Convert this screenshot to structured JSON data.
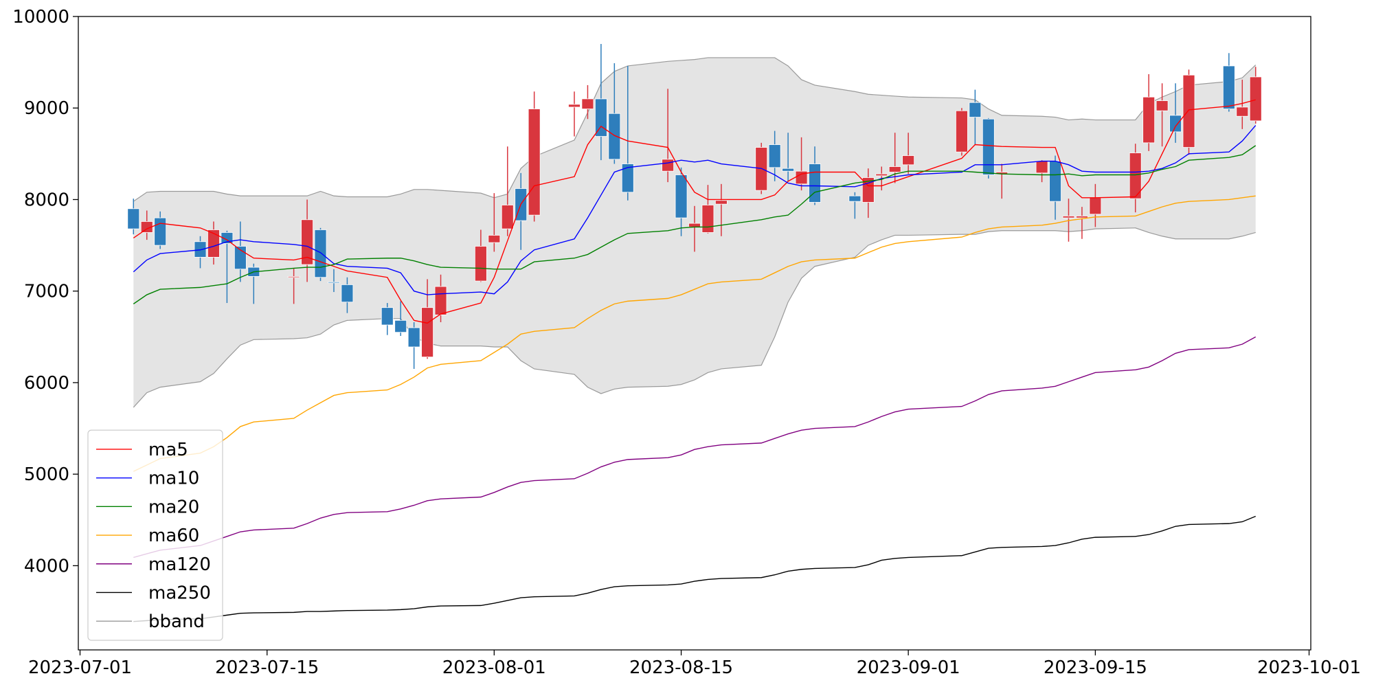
{
  "chart_data": {
    "type": "candlestick",
    "x": [
      "2023-07-05",
      "2023-07-06",
      "2023-07-07",
      "2023-07-10",
      "2023-07-11",
      "2023-07-12",
      "2023-07-13",
      "2023-07-14",
      "2023-07-17",
      "2023-07-18",
      "2023-07-19",
      "2023-07-20",
      "2023-07-21",
      "2023-07-24",
      "2023-07-25",
      "2023-07-26",
      "2023-07-27",
      "2023-07-28",
      "2023-07-31",
      "2023-08-01",
      "2023-08-02",
      "2023-08-03",
      "2023-08-04",
      "2023-08-07",
      "2023-08-08",
      "2023-08-09",
      "2023-08-10",
      "2023-08-11",
      "2023-08-14",
      "2023-08-15",
      "2023-08-16",
      "2023-08-17",
      "2023-08-18",
      "2023-08-21",
      "2023-08-22",
      "2023-08-23",
      "2023-08-24",
      "2023-08-25",
      "2023-08-28",
      "2023-08-29",
      "2023-08-30",
      "2023-08-31",
      "2023-09-01",
      "2023-09-05",
      "2023-09-06",
      "2023-09-07",
      "2023-09-08",
      "2023-09-11",
      "2023-09-12",
      "2023-09-13",
      "2023-09-14",
      "2023-09-15",
      "2023-09-18",
      "2023-09-19",
      "2023-09-20",
      "2023-09-21",
      "2023-09-22",
      "2023-09-25",
      "2023-09-26",
      "2023-09-27"
    ],
    "open": [
      7900,
      7640,
      7800,
      7540,
      7370,
      7640,
      7490,
      7260,
      7150,
      7290,
      7670,
      7100,
      7070,
      6820,
      6680,
      6600,
      6280,
      6740,
      7110,
      7530,
      7680,
      8120,
      7830,
      9010,
      8990,
      9100,
      8940,
      8390,
      8310,
      8270,
      7700,
      7640,
      7950,
      8100,
      8600,
      8340,
      8170,
      8390,
      8040,
      7970,
      8260,
      8300,
      8380,
      8520,
      9060,
      8880,
      8280,
      8290,
      8420,
      7800,
      7800,
      7840,
      8010,
      8620,
      8970,
      8920,
      8570,
      9460,
      8910,
      8860
    ],
    "high": [
      8010,
      7880,
      7870,
      7600,
      7760,
      7660,
      7760,
      7300,
      7250,
      8000,
      7690,
      7240,
      7150,
      6870,
      6890,
      6660,
      7130,
      7180,
      7670,
      8070,
      8580,
      8290,
      9180,
      9180,
      9250,
      9700,
      9490,
      9460,
      9210,
      8350,
      7930,
      8160,
      8170,
      8620,
      8750,
      8730,
      8680,
      8580,
      8080,
      8340,
      8360,
      8730,
      8730,
      9000,
      9200,
      8890,
      8390,
      8430,
      8480,
      8010,
      7920,
      8170,
      8610,
      9370,
      9270,
      9270,
      9420,
      9600,
      9310,
      9450
    ],
    "low": [
      7620,
      7560,
      7460,
      7250,
      7290,
      6870,
      7100,
      6860,
      6860,
      7100,
      7110,
      6990,
      6760,
      6520,
      6510,
      6150,
      6260,
      6660,
      7100,
      7430,
      7600,
      7450,
      7760,
      8690,
      8880,
      8430,
      8390,
      7990,
      8190,
      7600,
      7430,
      7630,
      7600,
      8060,
      8200,
      8200,
      8100,
      7940,
      7790,
      7800,
      8100,
      8180,
      8280,
      8480,
      8600,
      8230,
      8010,
      8190,
      7780,
      7540,
      7570,
      7700,
      7860,
      8530,
      8580,
      8620,
      8490,
      8960,
      8770,
      8830
    ],
    "close": [
      7680,
      7760,
      7500,
      7370,
      7670,
      7520,
      7240,
      7160,
      7160,
      7780,
      7150,
      7090,
      6880,
      6630,
      6550,
      6390,
      6820,
      7050,
      7490,
      7610,
      7940,
      7770,
      8990,
      9040,
      9100,
      8690,
      8440,
      8080,
      8440,
      7800,
      7740,
      7940,
      7990,
      8570,
      8350,
      8310,
      8310,
      7970,
      7980,
      8240,
      8280,
      8360,
      8480,
      8970,
      8900,
      8270,
      8300,
      8420,
      7980,
      7820,
      7820,
      8020,
      8510,
      9120,
      9080,
      8740,
      9360,
      8990,
      9010,
      9340
    ],
    "up_color": "#d9363e",
    "down_color": "#2e7ebc",
    "series": [
      {
        "name": "ma5",
        "color": "#ff0000",
        "values": [
          7580,
          7680,
          7740,
          7690,
          7630,
          7560,
          7450,
          7360,
          7340,
          7370,
          7320,
          7270,
          7220,
          7150,
          6900,
          6680,
          6650,
          6750,
          6870,
          7150,
          7550,
          7950,
          8150,
          8250,
          8600,
          8800,
          8700,
          8640,
          8570,
          8300,
          8080,
          8000,
          8000,
          8000,
          8050,
          8200,
          8280,
          8300,
          8300,
          8150,
          8150,
          8200,
          8250,
          8450,
          8600,
          8590,
          8580,
          8570,
          8570,
          8150,
          8020,
          8020,
          8030,
          8200,
          8500,
          8800,
          8980,
          9020,
          9050,
          9090
        ]
      },
      {
        "name": "ma10",
        "color": "#0000ff",
        "values": [
          7210,
          7340,
          7410,
          7450,
          7490,
          7540,
          7560,
          7540,
          7510,
          7490,
          7420,
          7300,
          7270,
          7250,
          7200,
          7000,
          6960,
          6970,
          6990,
          6970,
          7100,
          7330,
          7450,
          7570,
          7800,
          8050,
          8300,
          8350,
          8400,
          8430,
          8410,
          8430,
          8390,
          8340,
          8270,
          8180,
          8150,
          8150,
          8140,
          8180,
          8230,
          8250,
          8270,
          8300,
          8380,
          8380,
          8380,
          8420,
          8420,
          8380,
          8310,
          8300,
          8300,
          8310,
          8340,
          8400,
          8500,
          8520,
          8640,
          8810
        ]
      },
      {
        "name": "ma20",
        "color": "#008000",
        "values": [
          6860,
          6960,
          7020,
          7040,
          7060,
          7080,
          7150,
          7210,
          7250,
          7260,
          7260,
          7290,
          7350,
          7360,
          7360,
          7330,
          7290,
          7260,
          7250,
          7240,
          7240,
          7240,
          7320,
          7360,
          7400,
          7480,
          7560,
          7630,
          7660,
          7690,
          7700,
          7700,
          7720,
          7780,
          7810,
          7830,
          7950,
          8080,
          8180,
          8200,
          8220,
          8280,
          8310,
          8310,
          8300,
          8290,
          8280,
          8270,
          8270,
          8280,
          8260,
          8270,
          8270,
          8290,
          8330,
          8360,
          8430,
          8460,
          8490,
          8590
        ]
      },
      {
        "name": "ma60",
        "color": "#ffa500",
        "values": [
          5030,
          5100,
          5170,
          5230,
          5300,
          5400,
          5520,
          5570,
          5610,
          5700,
          5780,
          5860,
          5890,
          5920,
          5980,
          6060,
          6160,
          6200,
          6240,
          6330,
          6420,
          6530,
          6560,
          6600,
          6700,
          6790,
          6860,
          6890,
          6920,
          6960,
          7020,
          7080,
          7100,
          7130,
          7200,
          7270,
          7320,
          7340,
          7360,
          7420,
          7480,
          7520,
          7540,
          7590,
          7640,
          7680,
          7700,
          7720,
          7740,
          7770,
          7790,
          7810,
          7820,
          7870,
          7920,
          7960,
          7980,
          8000,
          8020,
          8040
        ]
      },
      {
        "name": "ma120",
        "color": "#800080",
        "values": [
          4090,
          4130,
          4170,
          4220,
          4270,
          4320,
          4370,
          4390,
          4410,
          4460,
          4520,
          4560,
          4580,
          4590,
          4620,
          4660,
          4710,
          4730,
          4750,
          4800,
          4860,
          4910,
          4930,
          4950,
          5010,
          5080,
          5130,
          5160,
          5180,
          5210,
          5270,
          5300,
          5320,
          5340,
          5390,
          5440,
          5480,
          5500,
          5520,
          5570,
          5630,
          5680,
          5710,
          5740,
          5800,
          5870,
          5910,
          5940,
          5960,
          6010,
          6060,
          6110,
          6140,
          6170,
          6240,
          6320,
          6360,
          6380,
          6420,
          6500
        ]
      },
      {
        "name": "ma250",
        "color": "#000000",
        "values": [
          3390,
          3400,
          3410,
          3420,
          3440,
          3460,
          3480,
          3485,
          3490,
          3500,
          3500,
          3505,
          3510,
          3515,
          3520,
          3530,
          3550,
          3560,
          3565,
          3590,
          3620,
          3650,
          3660,
          3670,
          3700,
          3740,
          3770,
          3780,
          3790,
          3800,
          3830,
          3850,
          3860,
          3870,
          3900,
          3940,
          3960,
          3970,
          3980,
          4010,
          4060,
          4080,
          4090,
          4110,
          4150,
          4190,
          4200,
          4210,
          4220,
          4250,
          4290,
          4310,
          4320,
          4340,
          4380,
          4430,
          4450,
          4460,
          4480,
          4540
        ]
      }
    ],
    "band": {
      "name": "bband",
      "color": "#999999",
      "fill": "#e4e4e4",
      "upper": [
        7980,
        8080,
        8090,
        8090,
        8090,
        8060,
        8040,
        8040,
        8040,
        8040,
        8090,
        8040,
        8030,
        8030,
        8060,
        8110,
        8110,
        8100,
        8070,
        8020,
        8060,
        8340,
        8470,
        8650,
        8950,
        9270,
        9400,
        9460,
        9510,
        9520,
        9530,
        9550,
        9550,
        9550,
        9550,
        9460,
        9310,
        9250,
        9180,
        9150,
        9140,
        9130,
        9120,
        9110,
        9090,
        8990,
        8920,
        8910,
        8900,
        8870,
        8880,
        8870,
        8870,
        9050,
        9120,
        9180,
        9250,
        9290,
        9330,
        9470
      ],
      "lower": [
        5730,
        5890,
        5950,
        6010,
        6100,
        6260,
        6410,
        6470,
        6480,
        6490,
        6530,
        6630,
        6680,
        6700,
        6700,
        6500,
        6430,
        6400,
        6400,
        6390,
        6390,
        6240,
        6150,
        6090,
        5950,
        5880,
        5930,
        5950,
        5960,
        5980,
        6030,
        6110,
        6150,
        6190,
        6500,
        6880,
        7140,
        7270,
        7370,
        7500,
        7560,
        7610,
        7610,
        7620,
        7620,
        7650,
        7660,
        7660,
        7660,
        7650,
        7660,
        7680,
        7690,
        7640,
        7600,
        7570,
        7570,
        7570,
        7600,
        7640
      ]
    },
    "xlim": [
      "2023-07-01",
      "2023-10-01"
    ],
    "xticks": [
      "2023-07-01",
      "2023-07-15",
      "2023-08-01",
      "2023-08-15",
      "2023-09-01",
      "2023-09-15",
      "2023-10-01"
    ],
    "ylim": [
      3080,
      10000
    ],
    "yticks": [
      4000,
      5000,
      6000,
      7000,
      8000,
      9000,
      10000
    ],
    "legend": "lower left"
  }
}
